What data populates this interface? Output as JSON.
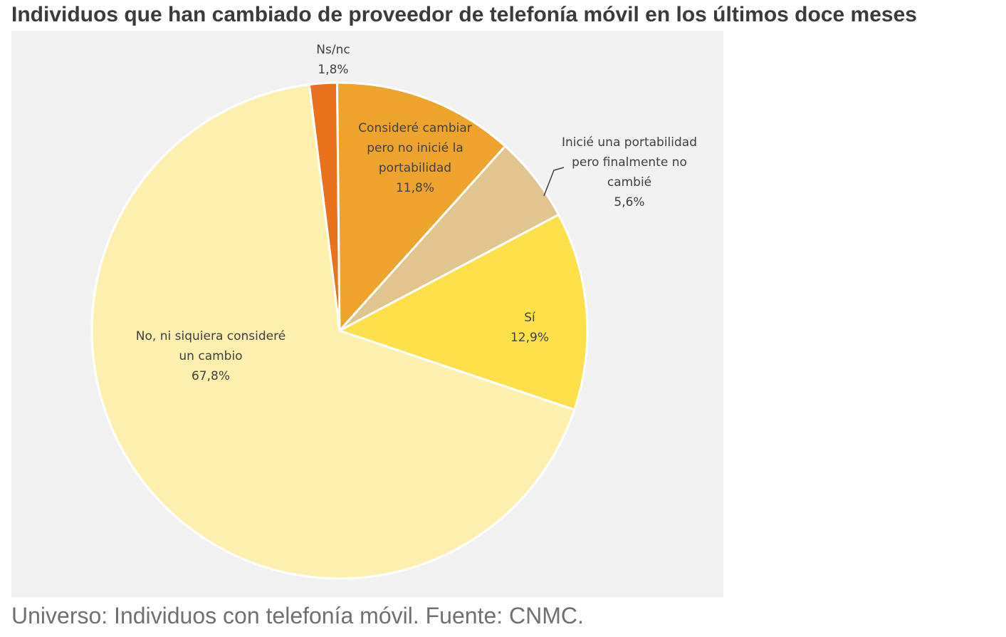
{
  "title": "Individuos que han cambiado de proveedor de telefonía móvil en los últimos doce meses",
  "caption": "Universo: Individuos con telefonía móvil. Fuente: CNMC.",
  "chart_data": {
    "type": "pie",
    "unit": "%",
    "slices": [
      {
        "name": "Ns/nc",
        "label_lines": [
          "Ns/nc"
        ],
        "value": 1.8,
        "value_label": "1,8%",
        "color": "#e8731c"
      },
      {
        "name": "Consideré cambiar pero no inicié la portabilidad",
        "label_lines": [
          "Consideré cambiar",
          "pero no inicié la",
          "portabilidad"
        ],
        "value": 11.8,
        "value_label": "11,8%",
        "color": "#eea42c"
      },
      {
        "name": "Inicié una portabilidad pero finalmente no cambié",
        "label_lines": [
          "Inicié una portabilidad",
          "pero finalmente no",
          "cambié"
        ],
        "value": 5.6,
        "value_label": "5,6%",
        "color": "#e2c48f"
      },
      {
        "name": "Sí",
        "label_lines": [
          "Sí"
        ],
        "value": 12.9,
        "value_label": "12,9%",
        "color": "#fde04a"
      },
      {
        "name": "No, ni siquiera consideré un cambio",
        "label_lines": [
          "No, ni siquiera consideré",
          "un cambio"
        ],
        "value": 67.8,
        "value_label": "67,8%",
        "color": "#fff0b0"
      }
    ]
  }
}
